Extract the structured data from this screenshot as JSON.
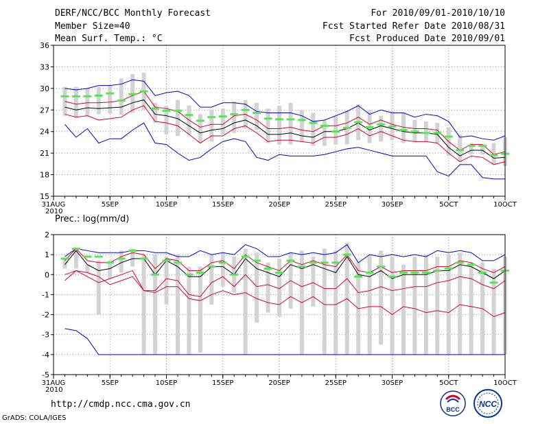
{
  "header": {
    "title": "DERF/NCC/BCC Monthly Forecast",
    "member_size": "Member Size=40",
    "variable": "Mean Surf. Temp.: °C",
    "period": "For 2010/09/01-2010/10/10",
    "started": "Fcst Started Refer Date 2010/08/31",
    "produced": "Fcst Produced Date 2010/09/01"
  },
  "footer": {
    "url": "http://cmdp.ncc.cma.gov.cn",
    "grads": "GrADS: COLA/IGES",
    "logo_left": "BCC",
    "logo_right": "NCC"
  },
  "colors": {
    "box": "#d3d3d3",
    "mean": "#55e655",
    "median": "#000000",
    "spread": "#d8002c",
    "range": "#0000cc",
    "grid": "#888888"
  },
  "chart_data": [
    {
      "type": "box",
      "id": "temp",
      "title": "",
      "ylabel": "Mean Surf. Temp.: °C",
      "ylim": [
        15,
        36
      ],
      "yticks": [
        15,
        18,
        21,
        24,
        27,
        30,
        33,
        36
      ],
      "x_days": [
        0,
        40
      ],
      "xticks": [
        {
          "day": 0,
          "label": "31AUG",
          "sub": "2010"
        },
        {
          "day": 5,
          "label": "5SEP"
        },
        {
          "day": 10,
          "label": "10SEP"
        },
        {
          "day": 15,
          "label": "15SEP"
        },
        {
          "day": 20,
          "label": "20SEP"
        },
        {
          "day": 25,
          "label": "25SEP"
        },
        {
          "day": 30,
          "label": "30SEP"
        },
        {
          "day": 35,
          "label": "5OCT"
        },
        {
          "day": 40,
          "label": "10OCT"
        }
      ],
      "grid": true,
      "days": [
        1,
        2,
        3,
        4,
        5,
        6,
        7,
        8,
        9,
        10,
        11,
        12,
        13,
        14,
        15,
        16,
        17,
        18,
        19,
        20,
        21,
        22,
        23,
        24,
        25,
        26,
        27,
        28,
        29,
        30,
        31,
        32,
        33,
        34,
        35,
        36,
        37,
        38,
        39,
        40
      ],
      "box_low": [
        26.2,
        26.0,
        26.2,
        26.4,
        26.5,
        26.3,
        26.6,
        27.0,
        25.2,
        23.6,
        23.4,
        23.6,
        22.4,
        22.6,
        23.6,
        23.8,
        24.4,
        24.2,
        22.4,
        22.2,
        22.2,
        22.6,
        22.0,
        22.0,
        22.2,
        22.2,
        22.8,
        22.4,
        22.6,
        22.8,
        22.4,
        22.6,
        22.6,
        22.4,
        20.6,
        19.8,
        20.8,
        20.8,
        19.4,
        19.2
      ],
      "box_high": [
        30.2,
        30.2,
        30.0,
        30.2,
        30.4,
        31.4,
        32.0,
        32.2,
        28.0,
        27.6,
        28.4,
        27.6,
        26.4,
        27.0,
        27.2,
        28.2,
        28.4,
        28.0,
        27.2,
        27.6,
        28.0,
        27.0,
        26.6,
        25.6,
        26.2,
        26.8,
        27.8,
        27.0,
        26.2,
        26.8,
        26.6,
        25.6,
        25.4,
        25.2,
        24.6,
        23.6,
        22.4,
        22.2,
        22.4,
        23.2
      ],
      "mean": [
        28.9,
        28.9,
        28.9,
        29.0,
        29.3,
        28.3,
        29.2,
        29.6,
        27.2,
        26.9,
        26.9,
        26.3,
        25.5,
        26.0,
        26.1,
        26.4,
        27.0,
        26.6,
        25.8,
        25.7,
        25.7,
        25.6,
        25.2,
        24.8,
        24.0,
        24.5,
        25.3,
        24.6,
        25.0,
        24.7,
        24.2,
        24.0,
        23.8,
        23.8,
        23.3,
        21.4,
        22.0,
        22.0,
        20.7,
        20.9
      ],
      "median": [
        27.4,
        27.0,
        27.3,
        27.2,
        27.3,
        27.4,
        28.0,
        28.4,
        26.4,
        26.2,
        25.8,
        24.8,
        23.8,
        24.2,
        24.4,
        25.2,
        25.6,
        24.8,
        23.6,
        23.6,
        23.8,
        23.4,
        23.2,
        24.0,
        24.0,
        24.4,
        25.2,
        24.2,
        24.8,
        24.4,
        24.0,
        23.8,
        23.8,
        23.6,
        21.8,
        20.6,
        21.4,
        21.4,
        20.3,
        20.4
      ],
      "upper": [
        28.2,
        27.8,
        28.0,
        28.0,
        28.1,
        28.3,
        29.0,
        29.6,
        27.4,
        27.2,
        26.8,
        25.6,
        24.6,
        25.0,
        25.0,
        26.2,
        26.4,
        25.6,
        24.4,
        24.4,
        24.6,
        24.2,
        24.0,
        24.8,
        24.8,
        25.2,
        26.0,
        25.0,
        25.6,
        25.0,
        24.6,
        24.4,
        24.4,
        24.2,
        22.6,
        21.4,
        22.2,
        22.2,
        20.8,
        21.2
      ],
      "lower": [
        26.4,
        26.0,
        26.2,
        25.6,
        25.8,
        26.0,
        27.0,
        27.6,
        25.4,
        25.2,
        24.8,
        23.6,
        22.4,
        23.4,
        23.4,
        24.4,
        24.8,
        23.8,
        22.6,
        22.8,
        22.8,
        22.6,
        22.4,
        23.2,
        23.2,
        23.6,
        24.4,
        23.4,
        24.0,
        23.4,
        22.8,
        22.6,
        22.6,
        22.4,
        21.0,
        19.8,
        20.6,
        20.4,
        19.4,
        19.8
      ],
      "max": [
        30.0,
        29.8,
        30.0,
        30.4,
        30.4,
        30.6,
        31.2,
        31.0,
        29.0,
        29.4,
        29.6,
        29.0,
        27.4,
        27.4,
        28.0,
        28.0,
        27.8,
        26.8,
        26.6,
        26.6,
        26.6,
        26.2,
        25.4,
        25.6,
        26.2,
        26.8,
        27.6,
        26.4,
        27.0,
        26.6,
        26.6,
        26.0,
        26.4,
        26.2,
        25.4,
        23.2,
        23.4,
        23.0,
        22.8,
        23.4
      ],
      "min": [
        25.0,
        23.2,
        24.4,
        22.4,
        23.0,
        23.0,
        24.2,
        25.2,
        22.4,
        22.2,
        21.0,
        20.0,
        20.4,
        21.6,
        22.6,
        23.0,
        22.6,
        20.4,
        20.0,
        20.8,
        20.6,
        20.6,
        20.6,
        20.8,
        21.2,
        21.6,
        21.8,
        21.4,
        21.0,
        20.6,
        20.6,
        20.6,
        20.6,
        18.4,
        17.8,
        19.4,
        19.4,
        17.6,
        17.4,
        17.4
      ]
    },
    {
      "type": "box",
      "id": "prec",
      "title": "",
      "ylabel": "Prec.: log(mm/d)",
      "ylim": [
        -5,
        2
      ],
      "yticks": [
        -5,
        -4,
        -3,
        -2,
        -1,
        0,
        1,
        2
      ],
      "x_days": [
        0,
        40
      ],
      "xticks": [
        {
          "day": 0,
          "label": "31AUG",
          "sub": "2010"
        },
        {
          "day": 5,
          "label": "5SEP"
        },
        {
          "day": 10,
          "label": "10SEP"
        },
        {
          "day": 15,
          "label": "15SEP"
        },
        {
          "day": 20,
          "label": "20SEP"
        },
        {
          "day": 25,
          "label": "25SEP"
        },
        {
          "day": 30,
          "label": "30SEP"
        },
        {
          "day": 35,
          "label": "5OCT"
        },
        {
          "day": 40,
          "label": "10OCT"
        }
      ],
      "grid": true,
      "days": [
        1,
        2,
        3,
        4,
        5,
        6,
        7,
        8,
        9,
        10,
        11,
        12,
        13,
        14,
        15,
        16,
        17,
        18,
        19,
        20,
        21,
        22,
        23,
        24,
        25,
        26,
        27,
        28,
        29,
        30,
        31,
        32,
        33,
        34,
        35,
        36,
        37,
        38,
        39,
        40
      ],
      "box_low": [
        0.3,
        0.3,
        0.1,
        -2.0,
        -0.2,
        0.1,
        0.4,
        -4.0,
        -4.0,
        -1.5,
        -4.0,
        -4.0,
        -3.9,
        -1.5,
        -0.6,
        -0.9,
        -4.0,
        -2.4,
        -1.9,
        -2.1,
        -1.7,
        -4.0,
        -1.6,
        -4.0,
        -4.0,
        -4.0,
        -4.0,
        -4.0,
        -3.5,
        -4.0,
        -4.0,
        -4.0,
        -4.0,
        -4.0,
        -4.0,
        -4.0,
        -4.0,
        -4.0,
        -4.0,
        -4.0
      ],
      "box_high": [
        0.8,
        1.3,
        0.5,
        0.7,
        0.7,
        1.2,
        1.3,
        1.0,
        1.0,
        0.9,
        1.0,
        0.4,
        0.4,
        1.0,
        1.1,
        0.9,
        1.3,
        1.1,
        0.6,
        0.8,
        1.1,
        1.2,
        0.9,
        1.3,
        1.2,
        1.6,
        0.6,
        1.0,
        1.2,
        0.9,
        0.5,
        0.9,
        1.0,
        0.9,
        1.0,
        1.1,
        0.6,
        0.6,
        0.3,
        0.9
      ],
      "mean": [
        0.8,
        1.3,
        0.9,
        0.9,
        0.6,
        0.8,
        1.2,
        0.8,
        0.0,
        0.7,
        0.6,
        0.0,
        0.1,
        0.4,
        0.6,
        0.0,
        0.9,
        0.7,
        0.3,
        0.1,
        0.7,
        0.4,
        0.6,
        0.6,
        0.6,
        1.0,
        -0.1,
        0.1,
        0.4,
        -0.1,
        0.1,
        0.1,
        0.1,
        0.2,
        0.3,
        0.6,
        0.5,
        0.1,
        -0.4,
        0.2
      ],
      "median": [
        0.5,
        1.2,
        0.5,
        0.2,
        0.3,
        0.6,
        0.8,
        0.8,
        0.0,
        0.7,
        0.4,
        -0.1,
        -0.1,
        0.4,
        0.4,
        0.0,
        0.8,
        0.3,
        0.1,
        -0.1,
        0.5,
        0.3,
        0.5,
        0.3,
        0.1,
        0.9,
        0.0,
        -0.1,
        0.2,
        -0.2,
        0.0,
        0.0,
        0.0,
        0.2,
        0.2,
        0.5,
        0.4,
        0.1,
        -0.2,
        0.2
      ],
      "upper": [
        0.7,
        1.3,
        0.7,
        0.6,
        0.6,
        0.9,
        1.1,
        1.0,
        0.3,
        0.8,
        0.7,
        0.2,
        0.2,
        0.6,
        0.7,
        0.3,
        1.0,
        0.6,
        0.4,
        0.2,
        0.7,
        0.5,
        0.7,
        0.5,
        0.4,
        1.0,
        0.2,
        0.1,
        0.4,
        0.1,
        0.2,
        0.2,
        0.2,
        0.4,
        0.4,
        0.7,
        0.6,
        0.3,
        0.1,
        0.4
      ],
      "lower": [
        -0.3,
        0.2,
        -0.1,
        -0.4,
        -0.2,
        0.0,
        0.2,
        -0.8,
        -0.8,
        -0.2,
        -0.3,
        -1.0,
        -1.1,
        -0.4,
        -0.1,
        -0.6,
        0.0,
        -0.6,
        -0.5,
        -0.7,
        -0.3,
        -0.6,
        -0.4,
        -0.7,
        -0.7,
        -0.2,
        -0.9,
        -0.8,
        -0.6,
        -0.8,
        -0.7,
        -0.6,
        -0.6,
        -0.4,
        -0.3,
        -0.1,
        -0.2,
        -0.5,
        -0.7,
        -0.3
      ],
      "max": [
        0.9,
        1.3,
        1.2,
        1.1,
        1.1,
        1.1,
        1.2,
        1.2,
        1.1,
        1.1,
        0.9,
        0.9,
        1.2,
        1.0,
        1.1,
        1.0,
        1.5,
        1.3,
        0.9,
        0.9,
        1.1,
        1.0,
        1.1,
        1.0,
        1.1,
        1.5,
        0.6,
        1.0,
        0.9,
        1.0,
        0.9,
        1.0,
        0.9,
        1.2,
        1.1,
        1.2,
        1.1,
        0.7,
        0.7,
        1.0
      ],
      "min": [
        -2.7,
        -2.8,
        -3.2,
        -4.0,
        -4.0,
        -4.0,
        -4.0,
        -4.0,
        -4.0,
        -4.0,
        -4.0,
        -4.0,
        -4.0,
        -4.0,
        -4.0,
        -4.0,
        -4.0,
        -4.0,
        -4.0,
        -4.0,
        -4.0,
        -4.0,
        -4.0,
        -4.0,
        -4.0,
        -4.0,
        -4.0,
        -4.0,
        -4.0,
        -4.0,
        -4.0,
        -4.0,
        -4.0,
        -4.0,
        -4.0,
        -4.0,
        -4.0,
        -4.0,
        -4.0,
        -4.0
      ],
      "min_line": [
        -2.7,
        -2.8,
        -3.2,
        -4.0,
        -4.0,
        -4.0,
        -4.0,
        -4.0,
        -4.0,
        -4.0,
        -4.0,
        -4.0,
        -4.0,
        -4.0,
        -4.0,
        -4.0,
        -4.0,
        -4.0,
        -4.0,
        -4.0,
        -4.0,
        -4.0,
        -4.0,
        -4.0,
        -4.0,
        -4.0,
        -4.0,
        -4.0,
        -4.0,
        -4.0,
        -4.0,
        -4.0,
        -4.0,
        -4.0,
        -4.0,
        -4.0,
        -4.0,
        -4.0,
        -4.0,
        -4.0
      ],
      "low_red": [
        0.0,
        0.2,
        0.1,
        -0.1,
        -0.5,
        -0.3,
        -0.1,
        -0.8,
        -0.9,
        -0.6,
        -0.6,
        -1.2,
        -1.3,
        -1.0,
        -0.8,
        -1.0,
        -0.9,
        -1.2,
        -1.4,
        -1.5,
        -1.1,
        -1.4,
        -1.1,
        -1.5,
        -1.5,
        -1.2,
        -1.7,
        -1.6,
        -1.6,
        -2.0,
        -1.6,
        -1.7,
        -1.9,
        -1.8,
        -1.9,
        -1.5,
        -1.6,
        -1.7,
        -2.1,
        -1.9
      ]
    }
  ]
}
